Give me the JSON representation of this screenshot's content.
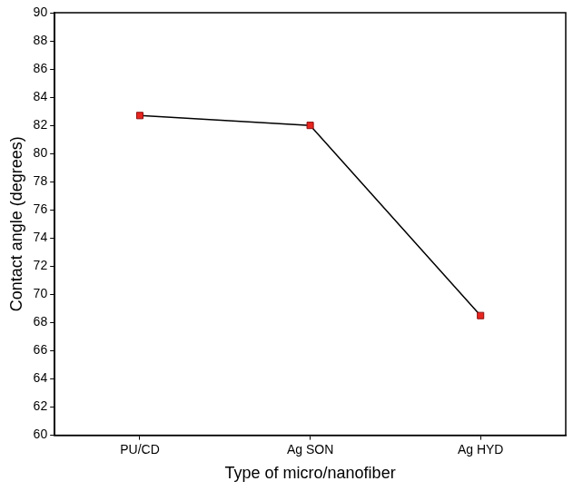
{
  "chart_data": {
    "type": "line",
    "x_label": "Type of micro/nanofiber",
    "y_label": "Contact angle (degrees)",
    "categories": [
      "PU/CD",
      "Ag SON",
      "Ag HYD"
    ],
    "series": [
      {
        "values": [
          82.7,
          82.0,
          68.5
        ],
        "color": "#e8251f",
        "marker": "square",
        "line_style": "solid"
      }
    ],
    "ylim": [
      60,
      90
    ],
    "yticks": [
      60,
      62,
      64,
      66,
      68,
      70,
      72,
      74,
      76,
      78,
      80,
      82,
      84,
      86,
      88,
      90
    ],
    "grid": false
  }
}
